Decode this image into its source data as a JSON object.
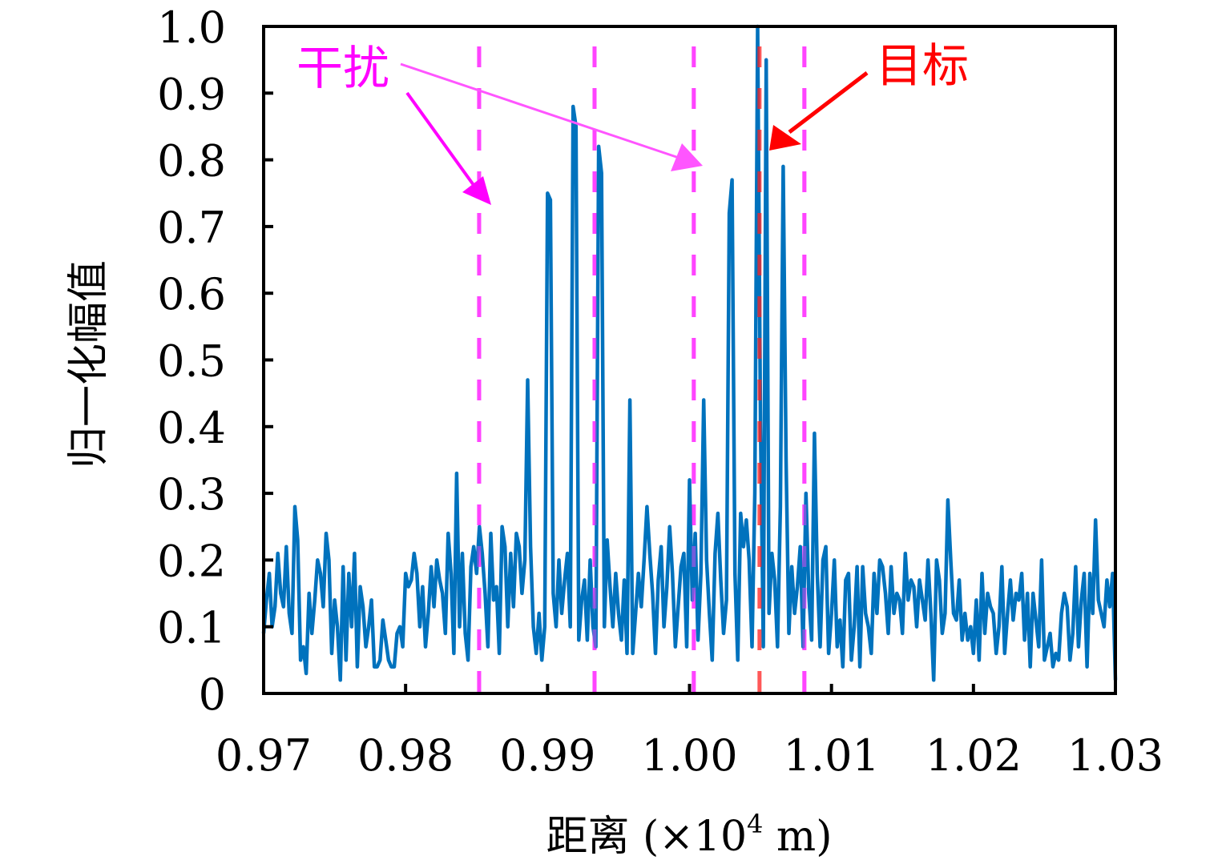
{
  "chart_data": {
    "type": "line",
    "title": "",
    "xlabel": "距离 (×10⁴ m)",
    "xlabel_parts": {
      "main": "距离 (×10",
      "sup": "4",
      "tail": " m)"
    },
    "ylabel": "归一化幅值",
    "xlim": [
      0.97,
      1.03
    ],
    "ylim": [
      0,
      1.0
    ],
    "xticks": [
      0.97,
      0.98,
      0.99,
      1.0,
      1.01,
      1.02,
      1.03
    ],
    "xtick_labels": [
      "0.97",
      "0.98",
      "0.99",
      "1.00",
      "1.01",
      "1.02",
      "1.03"
    ],
    "yticks": [
      0,
      0.1,
      0.2,
      0.3,
      0.4,
      0.5,
      0.6,
      0.7,
      0.8,
      0.9,
      1.0
    ],
    "ytick_labels": [
      "0",
      "0.1",
      "0.2",
      "0.3",
      "0.4",
      "0.5",
      "0.6",
      "0.7",
      "0.8",
      "0.9",
      "1.0"
    ],
    "grid": false,
    "colors": {
      "signal": "#0072BD",
      "interference": "#FF44FF",
      "target": "#FF2020",
      "target_text": "#FF0000",
      "interference_text": "#FF00FF"
    },
    "interference_lines_x": [
      0.98518,
      0.99331,
      1.0003,
      1.00809
    ],
    "target_line_x": 1.00493,
    "annotations": {
      "interference": {
        "text": "干扰"
      },
      "target": {
        "text": "目标"
      }
    },
    "series": [
      {
        "name": "signal",
        "x": [
          0.97,
          0.9702,
          0.9704,
          0.9706,
          0.9708,
          0.971,
          0.9712,
          0.9714,
          0.9716,
          0.9718,
          0.972,
          0.9722,
          0.9724,
          0.9726,
          0.9728,
          0.973,
          0.9732,
          0.9734,
          0.9736,
          0.9738,
          0.974,
          0.9742,
          0.9744,
          0.9746,
          0.9748,
          0.975,
          0.9752,
          0.9754,
          0.9756,
          0.9758,
          0.976,
          0.9762,
          0.9764,
          0.9766,
          0.9768,
          0.977,
          0.9772,
          0.9774,
          0.9776,
          0.9778,
          0.978,
          0.9782,
          0.9784,
          0.9786,
          0.9788,
          0.979,
          0.9792,
          0.9794,
          0.9796,
          0.9798,
          0.98,
          0.9802,
          0.9804,
          0.9806,
          0.9808,
          0.981,
          0.9812,
          0.9814,
          0.9816,
          0.9818,
          0.982,
          0.9822,
          0.9824,
          0.9826,
          0.9828,
          0.983,
          0.9832,
          0.9834,
          0.9836,
          0.9838,
          0.984,
          0.9842,
          0.9844,
          0.9846,
          0.9848,
          0.985,
          0.9852,
          0.9854,
          0.9856,
          0.9858,
          0.986,
          0.9862,
          0.9864,
          0.9866,
          0.9868,
          0.987,
          0.9872,
          0.9874,
          0.9876,
          0.9878,
          0.988,
          0.9882,
          0.9884,
          0.9886,
          0.9888,
          0.989,
          0.9892,
          0.9894,
          0.9896,
          0.9898,
          0.99,
          0.9902,
          0.9904,
          0.9906,
          0.9908,
          0.991,
          0.9912,
          0.9914,
          0.9916,
          0.9918,
          0.992,
          0.9922,
          0.9924,
          0.9926,
          0.9928,
          0.993,
          0.9932,
          0.9934,
          0.9936,
          0.9938,
          0.994,
          0.9942,
          0.9944,
          0.9946,
          0.9948,
          0.995,
          0.9952,
          0.9954,
          0.9956,
          0.9958,
          0.996,
          0.9962,
          0.9964,
          0.9966,
          0.9968,
          0.997,
          0.9972,
          0.9974,
          0.9976,
          0.9978,
          0.998,
          0.9982,
          0.9984,
          0.9986,
          0.9988,
          0.999,
          0.9992,
          0.9994,
          0.9996,
          0.9998,
          1.0,
          1.0002,
          1.0004,
          1.0006,
          1.0008,
          1.001,
          1.0012,
          1.0014,
          1.0016,
          1.0018,
          1.002,
          1.0022,
          1.0024,
          1.0026,
          1.0028,
          1.003,
          1.0032,
          1.0034,
          1.0036,
          1.0038,
          1.004,
          1.0042,
          1.0044,
          1.0046,
          1.0048,
          1.005,
          1.0052,
          1.0054,
          1.0056,
          1.0058,
          1.006,
          1.0062,
          1.0064,
          1.0066,
          1.0068,
          1.007,
          1.0072,
          1.0074,
          1.0076,
          1.0078,
          1.008,
          1.0082,
          1.0084,
          1.0086,
          1.0088,
          1.009,
          1.0092,
          1.0094,
          1.0096,
          1.0098,
          1.01,
          1.0102,
          1.0104,
          1.0106,
          1.0108,
          1.011,
          1.0112,
          1.0114,
          1.0116,
          1.0118,
          1.012,
          1.0122,
          1.0124,
          1.0126,
          1.0128,
          1.013,
          1.0132,
          1.0134,
          1.0136,
          1.0138,
          1.014,
          1.0142,
          1.0144,
          1.0146,
          1.0148,
          1.015,
          1.0152,
          1.0154,
          1.0156,
          1.0158,
          1.016,
          1.0162,
          1.0164,
          1.0166,
          1.0168,
          1.017,
          1.0172,
          1.0174,
          1.0176,
          1.0178,
          1.018,
          1.0182,
          1.0184,
          1.0186,
          1.0188,
          1.019,
          1.0192,
          1.0194,
          1.0196,
          1.0198,
          1.02,
          1.0202,
          1.0204,
          1.0206,
          1.0208,
          1.021,
          1.0212,
          1.0214,
          1.0216,
          1.0218,
          1.022,
          1.0222,
          1.0224,
          1.0226,
          1.0228,
          1.023,
          1.0232,
          1.0234,
          1.0236,
          1.0238,
          1.024,
          1.0242,
          1.0244,
          1.0246,
          1.0248,
          1.025,
          1.0252,
          1.0254,
          1.0256,
          1.0258,
          1.026,
          1.0262,
          1.0264,
          1.0266,
          1.0268,
          1.027,
          1.0272,
          1.0274,
          1.0276,
          1.0278,
          1.028,
          1.0282,
          1.0284,
          1.0286,
          1.0288,
          1.029,
          1.0292,
          1.0294,
          1.0296,
          1.0298,
          1.03
        ],
        "y": [
          0.09,
          0.14,
          0.18,
          0.1,
          0.13,
          0.21,
          0.15,
          0.13,
          0.22,
          0.12,
          0.09,
          0.28,
          0.23,
          0.05,
          0.07,
          0.03,
          0.15,
          0.09,
          0.14,
          0.2,
          0.18,
          0.13,
          0.24,
          0.2,
          0.06,
          0.14,
          0.1,
          0.02,
          0.19,
          0.05,
          0.18,
          0.1,
          0.21,
          0.04,
          0.16,
          0.13,
          0.07,
          0.1,
          0.14,
          0.04,
          0.04,
          0.05,
          0.11,
          0.08,
          0.05,
          0.04,
          0.04,
          0.09,
          0.1,
          0.07,
          0.18,
          0.16,
          0.17,
          0.21,
          0.18,
          0.1,
          0.16,
          0.07,
          0.12,
          0.19,
          0.13,
          0.2,
          0.17,
          0.15,
          0.09,
          0.24,
          0.18,
          0.06,
          0.33,
          0.1,
          0.21,
          0.09,
          0.05,
          0.19,
          0.22,
          0.18,
          0.25,
          0.21,
          0.15,
          0.07,
          0.24,
          0.14,
          0.16,
          0.06,
          0.25,
          0.22,
          0.1,
          0.21,
          0.13,
          0.24,
          0.22,
          0.15,
          0.2,
          0.47,
          0.22,
          0.1,
          0.06,
          0.12,
          0.05,
          0.1,
          0.75,
          0.74,
          0.15,
          0.1,
          0.2,
          0.12,
          0.17,
          0.21,
          0.1,
          0.88,
          0.85,
          0.08,
          0.14,
          0.17,
          0.08,
          0.2,
          0.1,
          0.07,
          0.82,
          0.78,
          0.1,
          0.23,
          0.16,
          0.1,
          0.18,
          0.12,
          0.08,
          0.17,
          0.06,
          0.44,
          0.06,
          0.12,
          0.18,
          0.13,
          0.2,
          0.28,
          0.21,
          0.15,
          0.06,
          0.17,
          0.22,
          0.1,
          0.16,
          0.25,
          0.18,
          0.07,
          0.13,
          0.19,
          0.21,
          0.07,
          0.32,
          0.14,
          0.24,
          0.08,
          0.18,
          0.44,
          0.2,
          0.12,
          0.05,
          0.21,
          0.27,
          0.17,
          0.09,
          0.14,
          0.72,
          0.77,
          0.18,
          0.05,
          0.27,
          0.22,
          0.26,
          0.2,
          0.07,
          0.3,
          1.0,
          0.4,
          0.07,
          0.95,
          0.12,
          0.21,
          0.17,
          0.07,
          0.28,
          0.79,
          0.35,
          0.09,
          0.19,
          0.12,
          0.16,
          0.22,
          0.07,
          0.3,
          0.15,
          0.08,
          0.39,
          0.18,
          0.07,
          0.2,
          0.22,
          0.06,
          0.12,
          0.2,
          0.07,
          0.11,
          0.04,
          0.17,
          0.18,
          0.05,
          0.1,
          0.19,
          0.04,
          0.19,
          0.12,
          0.1,
          0.06,
          0.18,
          0.12,
          0.2,
          0.19,
          0.15,
          0.09,
          0.19,
          0.12,
          0.15,
          0.14,
          0.09,
          0.21,
          0.14,
          0.17,
          0.16,
          0.1,
          0.17,
          0.14,
          0.11,
          0.2,
          0.12,
          0.02,
          0.2,
          0.17,
          0.09,
          0.12,
          0.29,
          0.2,
          0.12,
          0.11,
          0.17,
          0.08,
          0.12,
          0.08,
          0.1,
          0.06,
          0.14,
          0.05,
          0.18,
          0.09,
          0.15,
          0.13,
          0.12,
          0.06,
          0.1,
          0.19,
          0.06,
          0.12,
          0.17,
          0.11,
          0.15,
          0.14,
          0.18,
          0.08,
          0.15,
          0.04,
          0.15,
          0.11,
          0.07,
          0.2,
          0.05,
          0.07,
          0.09,
          0.04,
          0.06,
          0.05,
          0.12,
          0.15,
          0.13,
          0.05,
          0.09,
          0.19,
          0.07,
          0.14,
          0.18,
          0.04,
          0.18,
          0.12,
          0.26,
          0.14,
          0.12,
          0.1,
          0.17,
          0.13,
          0.18,
          0.02
        ]
      }
    ]
  }
}
